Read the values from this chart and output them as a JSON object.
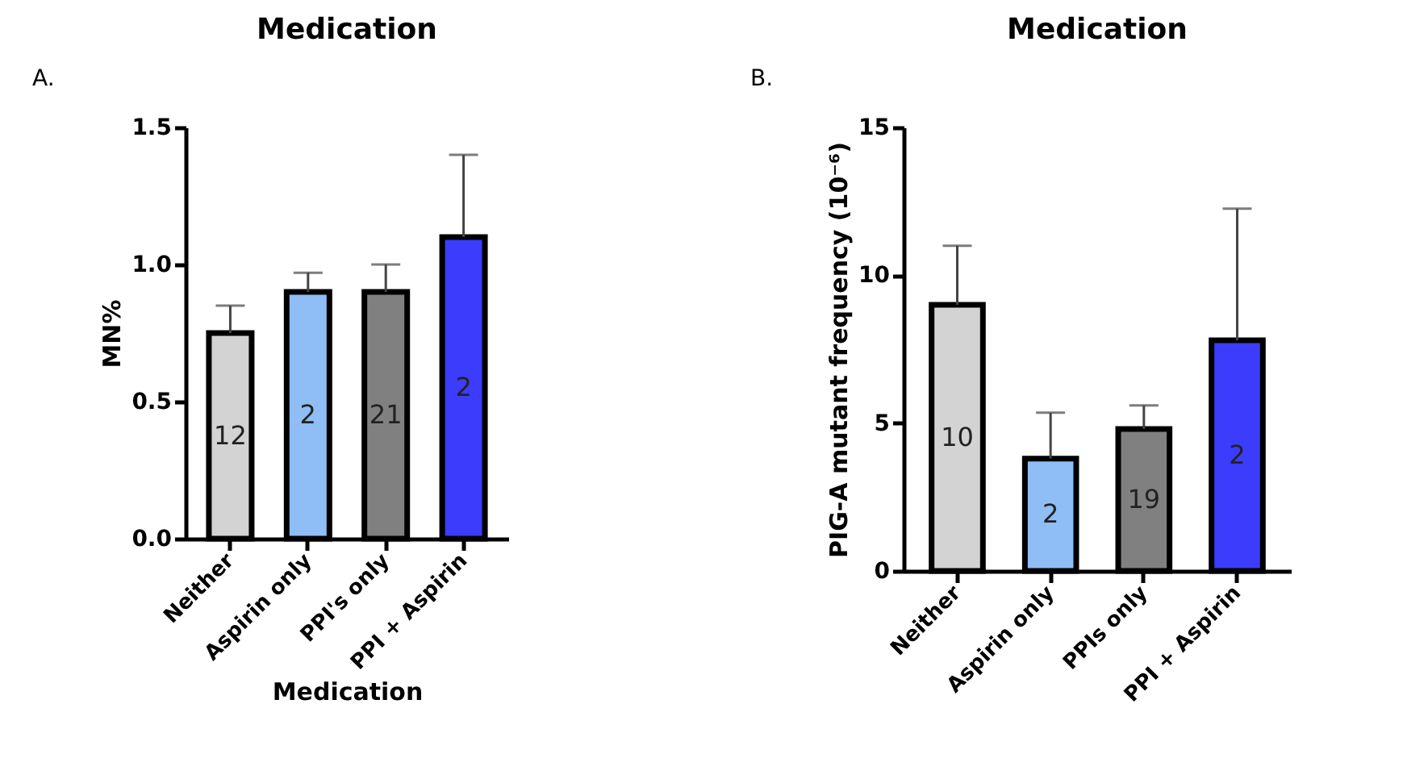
{
  "chart_data": [
    {
      "type": "bar",
      "title": "Medication",
      "xlabel": "Medication",
      "ylabel": "MN%",
      "categories": [
        "Neither",
        "Aspirin only",
        "PPI's only",
        "PPI + Aspirin"
      ],
      "values": [
        0.75,
        0.9,
        0.9,
        1.1
      ],
      "colors": [
        "#d3d3d3",
        "#8fbdf5",
        "#808080",
        "#3c3cfc"
      ],
      "errors": [
        [
          0.75,
          0.85
        ],
        [
          0.9,
          0.97
        ],
        [
          0.9,
          1.0
        ],
        [
          1.1,
          1.4
        ]
      ],
      "ylim": [
        0,
        1.5
      ],
      "yticks": [
        {
          "value": 0,
          "label": "0.0"
        },
        0.5,
        {
          "value": 1,
          "label": "1.0"
        },
        1.5
      ],
      "grid": false,
      "annotations": [
        "A.",
        "12",
        "2",
        "21",
        "2"
      ]
    },
    {
      "type": "bar",
      "title": "Medication",
      "ylabel": "PIG-A mutant frequency (10⁻⁶)",
      "categories": [
        "Neither",
        "Aspirin only",
        "PPIs only",
        "PPI + Aspirin"
      ],
      "values": [
        9.0,
        3.8,
        4.8,
        7.8
      ],
      "colors": [
        "#d3d3d3",
        "#8fbdf5",
        "#808080",
        "#3c3cfc"
      ],
      "errors": [
        [
          9.0,
          11.0
        ],
        [
          3.8,
          5.35
        ],
        [
          4.8,
          5.6
        ],
        [
          7.8,
          12.25
        ]
      ],
      "ylim": [
        0,
        15
      ],
      "yticks": [
        0,
        5,
        10,
        15
      ],
      "grid": false,
      "annotations": [
        "B.",
        "10",
        "2",
        "19",
        "2"
      ]
    }
  ]
}
